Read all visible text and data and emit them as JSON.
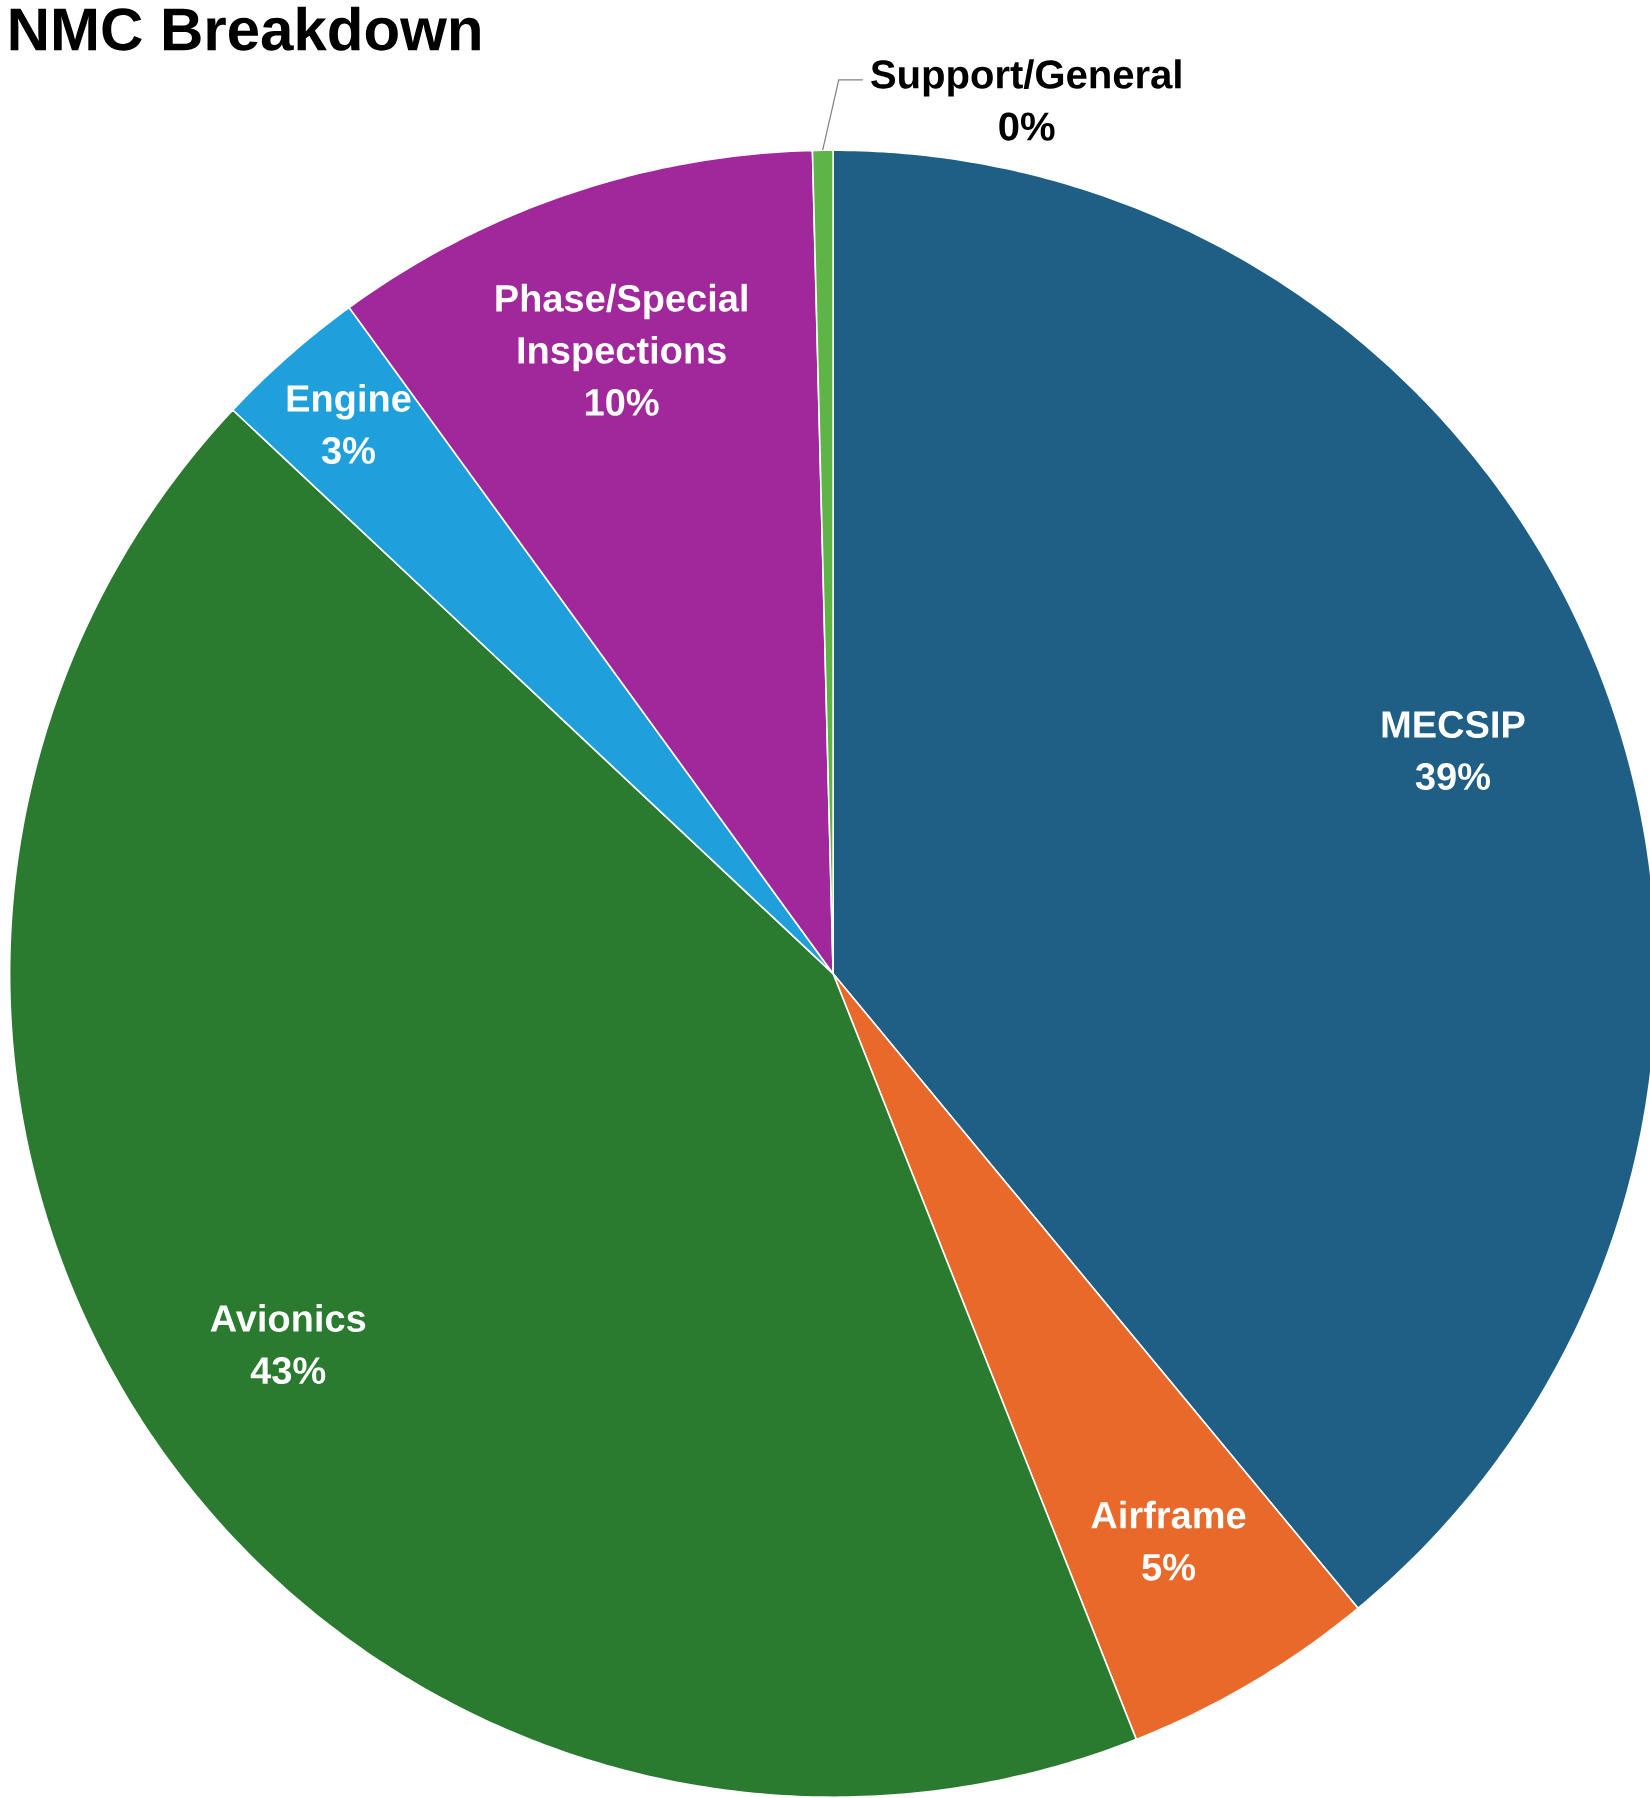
{
  "chart_data": {
    "type": "pie",
    "title": "NMC Breakdown",
    "categories": [
      "MECSIP",
      "Airframe",
      "Avionics",
      "Engine",
      "Phase/Special Inspections",
      "Support/General"
    ],
    "values": [
      39,
      5,
      43,
      3,
      9.6,
      0.4
    ],
    "value_labels": [
      "39%",
      "5%",
      "43%",
      "3%",
      "10%",
      "0%"
    ],
    "colors": [
      "#1f5f85",
      "#e8692a",
      "#2a7a30",
      "#1fa0dc",
      "#a0289a",
      "#5fb446"
    ]
  }
}
